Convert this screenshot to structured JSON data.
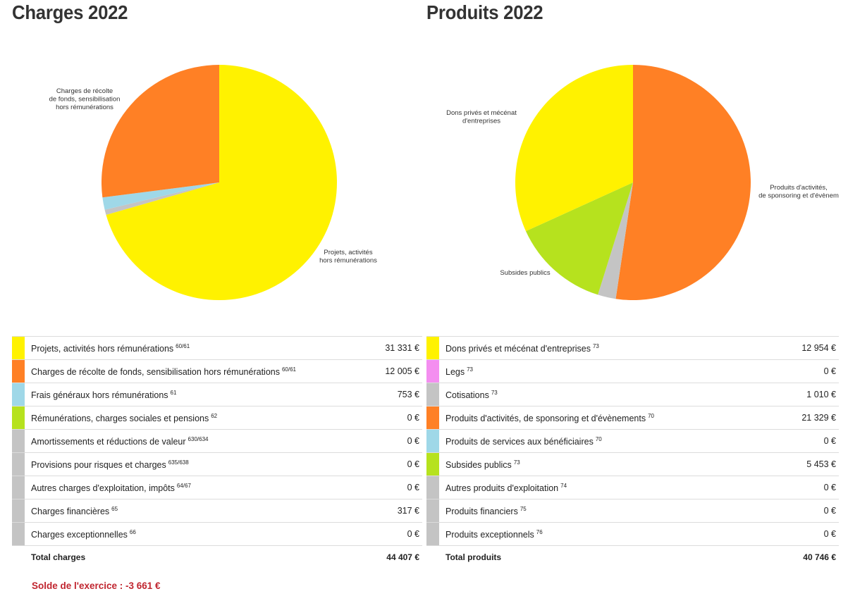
{
  "charges": {
    "title": "Charges 2022",
    "total_label": "Total charges",
    "total_value": "44 407 €",
    "rows": [
      {
        "label": "Projets, activités hors rémunérations",
        "ref": "60/61",
        "value": "31 331 €",
        "color": "#fff200"
      },
      {
        "label": "Charges de récolte de fonds, sensibilisation hors rémunérations",
        "ref": "60/61",
        "value": "12 005 €",
        "color": "#ff8025"
      },
      {
        "label": "Frais généraux hors rémunérations",
        "ref": "61",
        "value": "753 €",
        "color": "#9fd8e8"
      },
      {
        "label": "Rémunérations, charges sociales et pensions",
        "ref": "62",
        "value": "0 €",
        "color": "#b6e21e"
      },
      {
        "label": "Amortissements et réductions de valeur",
        "ref": "630/634",
        "value": "0 €",
        "color": "#c4c4c4"
      },
      {
        "label": "Provisions pour risques et charges",
        "ref": "635/638",
        "value": "0 €",
        "color": "#c4c4c4"
      },
      {
        "label": "Autres charges d'exploitation, impôts",
        "ref": "64/67",
        "value": "0 €",
        "color": "#c4c4c4"
      },
      {
        "label": "Charges financières",
        "ref": "65",
        "value": "317 €",
        "color": "#c4c4c4"
      },
      {
        "label": "Charges exceptionnelles",
        "ref": "66",
        "value": "0 €",
        "color": "#c4c4c4"
      }
    ]
  },
  "produits": {
    "title": "Produits 2022",
    "total_label": "Total produits",
    "total_value": "40 746 €",
    "rows": [
      {
        "label": "Dons privés et mécénat d'entreprises",
        "ref": "73",
        "value": "12 954 €",
        "color": "#fff200"
      },
      {
        "label": "Legs",
        "ref": "73",
        "value": "0 €",
        "color": "#f48ef0"
      },
      {
        "label": "Cotisations",
        "ref": "73",
        "value": "1 010 €",
        "color": "#c4c4c4"
      },
      {
        "label": "Produits d'activités, de sponsoring et d'évènements",
        "ref": "70",
        "value": "21 329 €",
        "color": "#ff8025"
      },
      {
        "label": "Produits de services aux bénéficiaires",
        "ref": "70",
        "value": "0 €",
        "color": "#9fd8e8"
      },
      {
        "label": "Subsides publics",
        "ref": "73",
        "value": "5 453 €",
        "color": "#b6e21e"
      },
      {
        "label": "Autres produits d'exploitation",
        "ref": "74",
        "value": "0 €",
        "color": "#c4c4c4"
      },
      {
        "label": "Produits financiers",
        "ref": "75",
        "value": "0 €",
        "color": "#c4c4c4"
      },
      {
        "label": "Produits exceptionnels",
        "ref": "76",
        "value": "0 €",
        "color": "#c4c4c4"
      }
    ]
  },
  "solde": "Solde de l'exercice : -3 661 €",
  "chart_data": [
    {
      "type": "pie",
      "title": "Charges 2022",
      "slices": [
        {
          "name": "Projets, activités hors rémunérations",
          "value": 31331,
          "color": "#fff200",
          "label_lines": [
            "Projets, activités",
            "hors rémunérations"
          ]
        },
        {
          "name": "Charges financières",
          "value": 317,
          "color": "#c4c4c4",
          "label_lines": []
        },
        {
          "name": "Frais généraux hors rémunérations",
          "value": 753,
          "color": "#9fd8e8",
          "label_lines": []
        },
        {
          "name": "Charges de récolte de fonds, sensibilisation hors rémunérations",
          "value": 12005,
          "color": "#ff8025",
          "label_lines": [
            "Charges de récolte",
            "de fonds, sensibilisation",
            "hors rémunérations"
          ]
        }
      ]
    },
    {
      "type": "pie",
      "title": "Produits 2022",
      "slices": [
        {
          "name": "Produits d'activités, de sponsoring et d'évènements",
          "value": 21329,
          "color": "#ff8025",
          "label_lines": [
            "Produits d'activités,",
            "de sponsoring et d'évènem"
          ]
        },
        {
          "name": "Cotisations",
          "value": 1010,
          "color": "#c4c4c4",
          "label_lines": []
        },
        {
          "name": "Subsides publics",
          "value": 5453,
          "color": "#b6e21e",
          "label_lines": [
            "Subsides publics"
          ]
        },
        {
          "name": "Dons privés et mécénat d'entreprises",
          "value": 12954,
          "color": "#fff200",
          "label_lines": [
            "Dons privés et mécénat",
            "d'entreprises"
          ]
        }
      ]
    }
  ]
}
